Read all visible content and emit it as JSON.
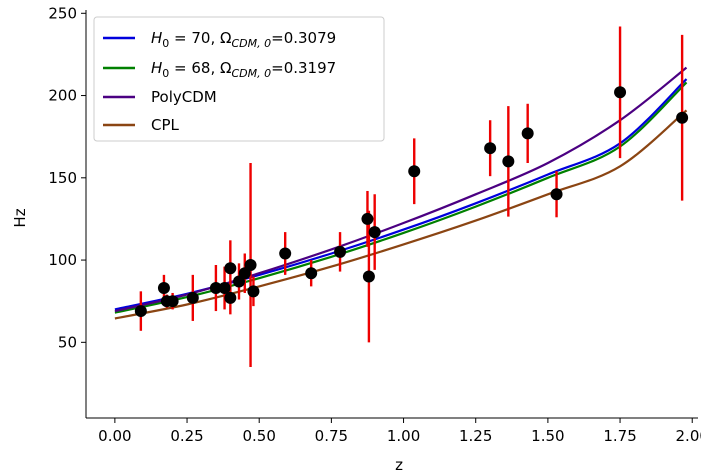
{
  "chart_data": {
    "type": "scatter",
    "xlabel": "z",
    "ylabel": "Hz",
    "xlim": [
      -0.1,
      2.02
    ],
    "ylim": [
      4,
      252
    ],
    "xticks": [
      0.0,
      0.25,
      0.5,
      0.75,
      1.0,
      1.25,
      1.5,
      1.75,
      2.0
    ],
    "xtick_labels": [
      "0.00",
      "0.25",
      "0.50",
      "0.75",
      "1.00",
      "1.25",
      "1.50",
      "1.75",
      "2.00"
    ],
    "yticks": [
      50,
      100,
      150,
      200,
      250
    ],
    "ytick_labels": [
      "50",
      "100",
      "150",
      "200",
      "250"
    ],
    "legend_position": "top-left",
    "series": [
      {
        "name": "H0 = 70, ΩCDM,0=0.3079",
        "kind": "line",
        "color": "#0000dd",
        "x": [
          0.0,
          0.25,
          0.5,
          0.75,
          1.0,
          1.25,
          1.5,
          1.75,
          1.98
        ],
        "y": [
          70,
          79.5,
          91,
          104,
          118.5,
          134.5,
          152,
          171,
          210
        ]
      },
      {
        "name": "H0 = 68, ΩCDM,0=0.3197",
        "kind": "line",
        "color": "#008000",
        "x": [
          0.0,
          0.25,
          0.5,
          0.75,
          1.0,
          1.25,
          1.5,
          1.75,
          1.98
        ],
        "y": [
          68,
          77.5,
          89,
          102,
          116.5,
          132.5,
          150,
          169,
          208
        ]
      },
      {
        "name": "PolyCDM",
        "kind": "line",
        "color": "#4b0082",
        "x": [
          0.0,
          0.25,
          0.5,
          0.75,
          1.0,
          1.25,
          1.5,
          1.75,
          1.98
        ],
        "y": [
          69,
          79,
          92,
          106.5,
          122.5,
          140,
          159,
          185,
          217
        ]
      },
      {
        "name": "CPL",
        "kind": "line",
        "color": "#8b4513",
        "x": [
          0.0,
          0.25,
          0.5,
          0.75,
          1.0,
          1.25,
          1.5,
          1.75,
          1.98
        ],
        "y": [
          64.5,
          73,
          84,
          96,
          109.5,
          124,
          140,
          157,
          191
        ]
      },
      {
        "name": "",
        "kind": "errorbar",
        "marker_color": "#000000",
        "error_color": "#ee0000",
        "points": [
          {
            "x": 0.09,
            "y": 69,
            "err": 12
          },
          {
            "x": 0.17,
            "y": 83,
            "err": 8
          },
          {
            "x": 0.18,
            "y": 75,
            "err": 4
          },
          {
            "x": 0.2,
            "y": 75,
            "err": 5
          },
          {
            "x": 0.27,
            "y": 77,
            "err": 14
          },
          {
            "x": 0.35,
            "y": 83,
            "err": 14
          },
          {
            "x": 0.38,
            "y": 83,
            "err": 13
          },
          {
            "x": 0.4,
            "y": 95,
            "err": 17
          },
          {
            "x": 0.4,
            "y": 77,
            "err": 10
          },
          {
            "x": 0.43,
            "y": 87,
            "err": 11
          },
          {
            "x": 0.45,
            "y": 92,
            "err": 12
          },
          {
            "x": 0.47,
            "y": 97,
            "err": 62
          },
          {
            "x": 0.48,
            "y": 81,
            "err": 9
          },
          {
            "x": 0.59,
            "y": 104,
            "err": 13
          },
          {
            "x": 0.68,
            "y": 92,
            "err": 8
          },
          {
            "x": 0.78,
            "y": 105,
            "err": 12
          },
          {
            "x": 0.875,
            "y": 125,
            "err": 17
          },
          {
            "x": 0.88,
            "y": 90,
            "err": 40
          },
          {
            "x": 0.9,
            "y": 117,
            "err": 23
          },
          {
            "x": 1.037,
            "y": 154,
            "err": 20
          },
          {
            "x": 1.3,
            "y": 168,
            "err": 17
          },
          {
            "x": 1.363,
            "y": 160,
            "err": 33.6
          },
          {
            "x": 1.43,
            "y": 177,
            "err": 18
          },
          {
            "x": 1.53,
            "y": 140,
            "err": 14
          },
          {
            "x": 1.75,
            "y": 202,
            "err": 40
          },
          {
            "x": 1.965,
            "y": 186.5,
            "err": 50.4
          }
        ]
      }
    ]
  }
}
